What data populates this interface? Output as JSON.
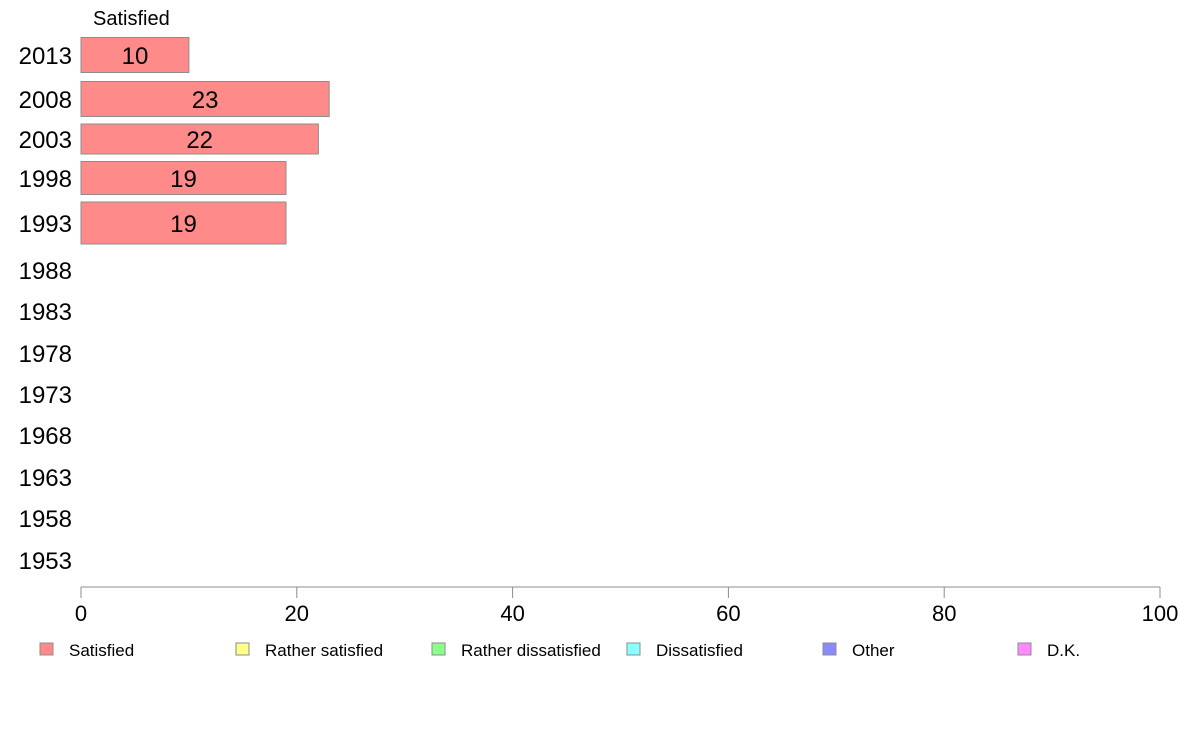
{
  "chart_data": {
    "type": "bar",
    "orientation": "horizontal",
    "stacked": true,
    "series_header": "Satisfied",
    "categories": [
      "2013",
      "2008",
      "2003",
      "1998",
      "1993",
      "1988",
      "1983",
      "1978",
      "1973",
      "1968",
      "1963",
      "1958",
      "1953"
    ],
    "series": [
      {
        "name": "Satisfied",
        "color": "#ff8a8a",
        "values": [
          10,
          23,
          22,
          19,
          19,
          null,
          null,
          null,
          null,
          null,
          null,
          null,
          null
        ]
      },
      {
        "name": "Rather satisfied",
        "color": "#ffff8a",
        "values": [
          null,
          null,
          null,
          null,
          null,
          null,
          null,
          null,
          null,
          null,
          null,
          null,
          null
        ]
      },
      {
        "name": "Rather dissatisfied",
        "color": "#8aff8a",
        "values": [
          null,
          null,
          null,
          null,
          null,
          null,
          null,
          null,
          null,
          null,
          null,
          null,
          null
        ]
      },
      {
        "name": "Dissatisfied",
        "color": "#8affff",
        "values": [
          null,
          null,
          null,
          null,
          null,
          null,
          null,
          null,
          null,
          null,
          null,
          null,
          null
        ]
      },
      {
        "name": "Other",
        "color": "#8a8aff",
        "values": [
          null,
          null,
          null,
          null,
          null,
          null,
          null,
          null,
          null,
          null,
          null,
          null,
          null
        ]
      },
      {
        "name": "D.K.",
        "color": "#ff8aff",
        "values": [
          null,
          null,
          null,
          null,
          null,
          null,
          null,
          null,
          null,
          null,
          null,
          null,
          null
        ]
      }
    ],
    "xlim": [
      0,
      100
    ],
    "xticks": [
      "0",
      "20",
      "40",
      "60",
      "80",
      "100"
    ],
    "grid": false,
    "legend_position": "bottom"
  }
}
